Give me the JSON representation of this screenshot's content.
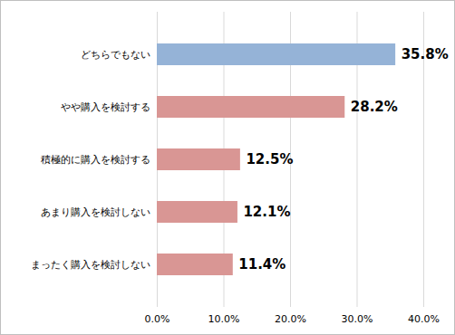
{
  "chart_data": {
    "type": "bar",
    "orientation": "horizontal",
    "categories": [
      "どちらでもない",
      "やや購入を検討する",
      "積極的に購入を検討する",
      "あまり購入を検討しない",
      "まったく購入を検討しない"
    ],
    "values": [
      35.8,
      28.2,
      12.5,
      12.1,
      11.4
    ],
    "value_labels": [
      "35.8%",
      "28.2%",
      "12.5%",
      "12.1%",
      "11.4%"
    ],
    "colors": [
      "#95b3d7",
      "#d99694",
      "#d99694",
      "#d99694",
      "#d99694"
    ],
    "xlim": [
      0,
      40
    ],
    "xticks": [
      {
        "value": 0,
        "label": "0.0%"
      },
      {
        "value": 10,
        "label": "10.0%"
      },
      {
        "value": 20,
        "label": "20.0%"
      },
      {
        "value": 30,
        "label": "30.0%"
      },
      {
        "value": 40,
        "label": "40.0%"
      }
    ],
    "grid": true,
    "data_labels": true
  }
}
